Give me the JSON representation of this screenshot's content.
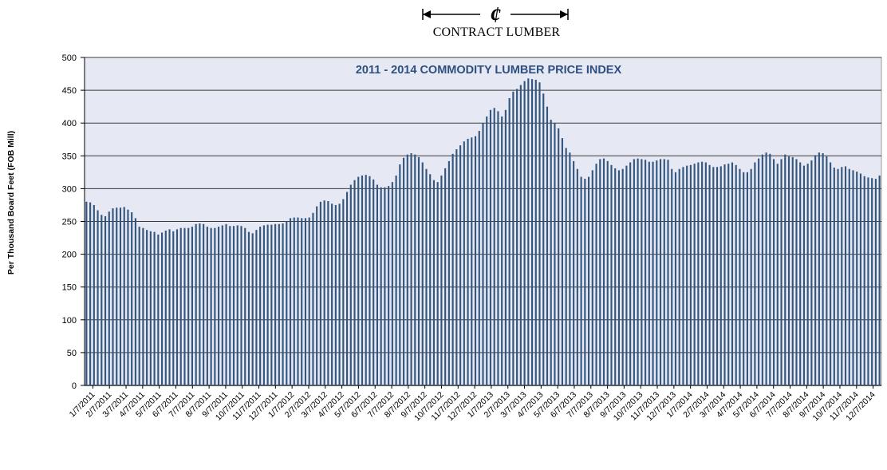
{
  "logo": {
    "text": "CONTRACT LUMBER",
    "symbol": "¢"
  },
  "chart_data": {
    "type": "bar",
    "title": "2011 - 2014 COMMODITY LUMBER PRICE INDEX",
    "xlabel": "",
    "ylabel": "Per Thousand Board Feet (FOB Mill)",
    "ylim": [
      0,
      500
    ],
    "yticks": [
      "0",
      "50",
      "100",
      "150",
      "200",
      "250",
      "300",
      "350",
      "400",
      "450",
      "500"
    ],
    "grid": true,
    "legend": "none",
    "colors": {
      "bar": "#34567e",
      "plot_bg": "#e6e9f3",
      "grid": "#000000",
      "title": "#2e4f7f"
    },
    "tick_labels": [
      "1/7/2011",
      "2/7/2011",
      "3/7/2011",
      "4/7/2011",
      "5/7/2011",
      "6/7/2011",
      "7/7/2011",
      "8/7/2011",
      "9/7/2011",
      "10/7/2011",
      "11/7/2011",
      "12/7/2011",
      "1/7/2012",
      "2/7/2012",
      "3/7/2012",
      "4/7/2012",
      "5/7/2012",
      "6/7/2012",
      "7/7/2012",
      "8/7/2012",
      "9/7/2012",
      "10/7/2012",
      "11/7/2012",
      "12/7/2012",
      "1/7/2013",
      "2/7/2013",
      "3/7/2013",
      "4/7/2013",
      "5/7/2013",
      "6/7/2013",
      "7/7/2013",
      "8/7/2013",
      "9/7/2013",
      "10/7/2013",
      "11/7/2013",
      "12/7/2013",
      "1/7/2014",
      "2/7/2014",
      "3/7/2014",
      "4/7/2014",
      "5/7/2014",
      "6/7/2014",
      "7/7/2014",
      "8/7/2014",
      "9/7/2014",
      "10/7/2014",
      "11/7/2014",
      "12/7/2014"
    ],
    "values": [
      280,
      279,
      275,
      267,
      260,
      258,
      265,
      270,
      271,
      271,
      272,
      268,
      264,
      255,
      242,
      240,
      237,
      235,
      234,
      230,
      233,
      236,
      238,
      235,
      238,
      240,
      240,
      240,
      242,
      246,
      247,
      246,
      242,
      240,
      240,
      242,
      244,
      246,
      243,
      243,
      244,
      243,
      240,
      234,
      232,
      237,
      242,
      244,
      245,
      245,
      246,
      246,
      247,
      250,
      255,
      256,
      256,
      255,
      255,
      256,
      263,
      273,
      280,
      282,
      281,
      277,
      275,
      277,
      284,
      295,
      306,
      313,
      318,
      320,
      321,
      319,
      314,
      306,
      302,
      302,
      304,
      310,
      320,
      337,
      347,
      352,
      354,
      352,
      348,
      340,
      330,
      322,
      313,
      310,
      320,
      331,
      342,
      353,
      360,
      366,
      372,
      376,
      378,
      380,
      388,
      400,
      410,
      420,
      423,
      418,
      410,
      420,
      438,
      448,
      452,
      458,
      464,
      468,
      467,
      466,
      462,
      445,
      425,
      405,
      400,
      392,
      377,
      362,
      355,
      342,
      330,
      318,
      315,
      318,
      328,
      338,
      345,
      346,
      342,
      336,
      331,
      328,
      330,
      335,
      340,
      345,
      346,
      345,
      344,
      341,
      341,
      343,
      345,
      345,
      344,
      330,
      325,
      330,
      333,
      335,
      336,
      338,
      340,
      341,
      340,
      336,
      333,
      333,
      334,
      337,
      338,
      340,
      336,
      330,
      325,
      325,
      330,
      340,
      346,
      352,
      355,
      353,
      345,
      338,
      345,
      352,
      349,
      348,
      345,
      340,
      335,
      338,
      343,
      351,
      355,
      354,
      349,
      340,
      332,
      330,
      333,
      334,
      330,
      328,
      326,
      323,
      319,
      317,
      316,
      315,
      320
    ]
  }
}
